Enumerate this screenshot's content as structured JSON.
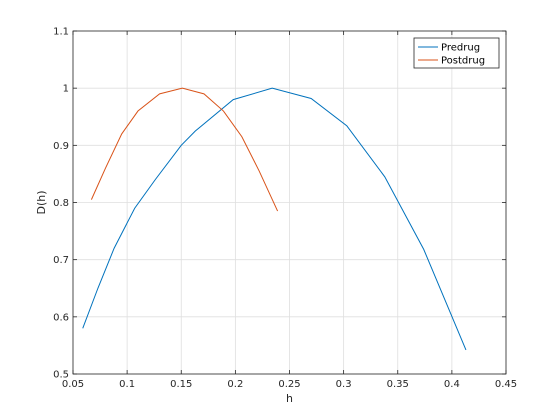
{
  "chart_data": {
    "type": "line",
    "title": "",
    "xlabel": "h",
    "ylabel": "D(h)",
    "xlim": [
      0.05,
      0.45
    ],
    "ylim": [
      0.5,
      1.1
    ],
    "xticks": [
      0.05,
      0.1,
      0.15,
      0.2,
      0.25,
      0.3,
      0.35,
      0.4,
      0.45
    ],
    "xtick_labels": [
      "0.05",
      "0.1",
      "0.15",
      "0.2",
      "0.25",
      "0.3",
      "0.35",
      "0.4",
      "0.45"
    ],
    "yticks": [
      0.5,
      0.6,
      0.7,
      0.8,
      0.9,
      1.0,
      1.1
    ],
    "ytick_labels": [
      "0.5",
      "0.6",
      "0.7",
      "0.8",
      "0.9",
      "1",
      "1.1"
    ],
    "grid": true,
    "legend_position": "top-right",
    "series": [
      {
        "name": "Predrug",
        "color": "#0072BD",
        "x": [
          0.059,
          0.073,
          0.088,
          0.107,
          0.126,
          0.15,
          0.163,
          0.198,
          0.234,
          0.27,
          0.303,
          0.338,
          0.374,
          0.413
        ],
        "y": [
          0.58,
          0.65,
          0.72,
          0.79,
          0.84,
          0.9,
          0.925,
          0.98,
          1.0,
          0.982,
          0.934,
          0.845,
          0.718,
          0.542
        ]
      },
      {
        "name": "Postdrug",
        "color": "#D95319",
        "x": [
          0.067,
          0.08,
          0.095,
          0.11,
          0.13,
          0.151,
          0.171,
          0.189,
          0.206,
          0.222,
          0.239
        ],
        "y": [
          0.805,
          0.86,
          0.92,
          0.96,
          0.99,
          1.0,
          0.99,
          0.96,
          0.915,
          0.855,
          0.785
        ]
      }
    ]
  }
}
